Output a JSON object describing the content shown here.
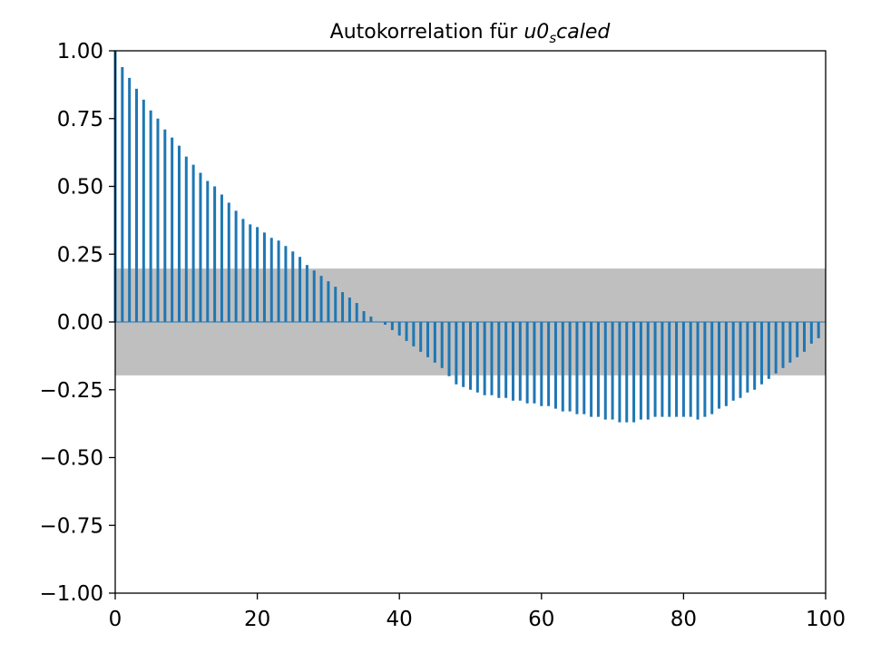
{
  "chart_data": {
    "type": "bar",
    "subtype": "stem",
    "title_parts": {
      "prefix": "Autokorrelation für ",
      "var_main": "u0",
      "var_sub": "s",
      "var_rest": "caled"
    },
    "xlabel": "",
    "ylabel": "",
    "xlim": [
      0,
      100
    ],
    "ylim": [
      -1.0,
      1.0
    ],
    "x_ticks": [
      0,
      20,
      40,
      60,
      80,
      100
    ],
    "x_tick_labels": [
      "0",
      "20",
      "40",
      "60",
      "80",
      "100"
    ],
    "y_ticks": [
      1.0,
      0.75,
      0.5,
      0.25,
      0.0,
      -0.25,
      -0.5,
      -0.75,
      -1.0
    ],
    "y_tick_labels": [
      "1.00",
      "0.75",
      "0.50",
      "0.25",
      "0.00",
      "−0.25",
      "−0.50",
      "−0.75",
      "−1.00"
    ],
    "confidence_band": [
      -0.197,
      0.197
    ],
    "grid": false,
    "colors": {
      "stem": "#1f77b4",
      "band": "#bfbfbf",
      "axes": "#000000"
    },
    "lags": [
      0,
      1,
      2,
      3,
      4,
      5,
      6,
      7,
      8,
      9,
      10,
      11,
      12,
      13,
      14,
      15,
      16,
      17,
      18,
      19,
      20,
      21,
      22,
      23,
      24,
      25,
      26,
      27,
      28,
      29,
      30,
      31,
      32,
      33,
      34,
      35,
      36,
      37,
      38,
      39,
      40,
      41,
      42,
      43,
      44,
      45,
      46,
      47,
      48,
      49,
      50,
      51,
      52,
      53,
      54,
      55,
      56,
      57,
      58,
      59,
      60,
      61,
      62,
      63,
      64,
      65,
      66,
      67,
      68,
      69,
      70,
      71,
      72,
      73,
      74,
      75,
      76,
      77,
      78,
      79,
      80,
      81,
      82,
      83,
      84,
      85,
      86,
      87,
      88,
      89,
      90,
      91,
      92,
      93,
      94,
      95,
      96,
      97,
      98,
      99
    ],
    "values": [
      1.0,
      0.94,
      0.9,
      0.86,
      0.82,
      0.78,
      0.75,
      0.71,
      0.68,
      0.65,
      0.61,
      0.58,
      0.55,
      0.52,
      0.5,
      0.47,
      0.44,
      0.41,
      0.38,
      0.36,
      0.35,
      0.33,
      0.31,
      0.3,
      0.28,
      0.26,
      0.24,
      0.21,
      0.19,
      0.17,
      0.15,
      0.13,
      0.11,
      0.09,
      0.07,
      0.04,
      0.02,
      0.0,
      -0.01,
      -0.03,
      -0.05,
      -0.07,
      -0.09,
      -0.11,
      -0.13,
      -0.15,
      -0.17,
      -0.2,
      -0.23,
      -0.24,
      -0.25,
      -0.26,
      -0.27,
      -0.27,
      -0.28,
      -0.28,
      -0.29,
      -0.29,
      -0.3,
      -0.3,
      -0.31,
      -0.31,
      -0.32,
      -0.33,
      -0.33,
      -0.34,
      -0.34,
      -0.35,
      -0.35,
      -0.36,
      -0.36,
      -0.37,
      -0.37,
      -0.37,
      -0.36,
      -0.36,
      -0.35,
      -0.35,
      -0.35,
      -0.35,
      -0.35,
      -0.35,
      -0.36,
      -0.35,
      -0.34,
      -0.32,
      -0.31,
      -0.29,
      -0.28,
      -0.26,
      -0.25,
      -0.23,
      -0.21,
      -0.19,
      -0.17,
      -0.15,
      -0.13,
      -0.11,
      -0.08,
      -0.06
    ]
  }
}
